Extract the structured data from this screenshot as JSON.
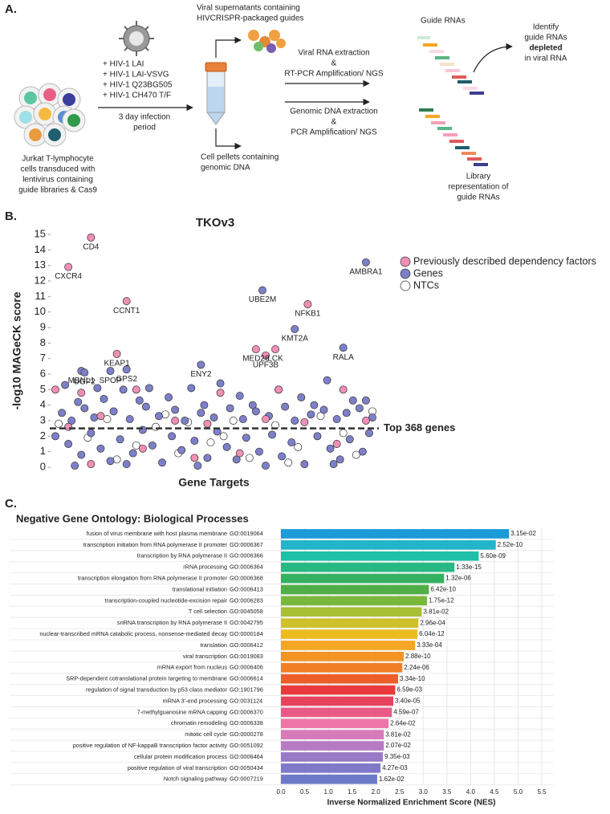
{
  "diagram": {
    "panel_label": "A.",
    "top_text": [
      "Viral supernatants containing",
      "HIVCRISPR-packaged  guides"
    ],
    "strains": [
      "+ HIV-1 LAI",
      "+ HIV-1 LAI-VSVG",
      "+ HIV-1 Q23BG505",
      "+ HIV-1 CH470 T/F"
    ],
    "infection": [
      "3 day infection",
      "period"
    ],
    "cells": [
      "Jurkat T-lymphocyte",
      "cells transduced with",
      "lentivirus containing",
      "guide libraries & Cas9"
    ],
    "pellets": [
      "Cell pellets containing",
      "genomic DNA"
    ],
    "viral_rna": [
      "Viral RNA extraction",
      "&",
      "RT-PCR Amplification/ NGS"
    ],
    "genomic_dna": [
      "Genomic DNA extraction",
      "&",
      "PCR Amplification/ NGS"
    ],
    "guide_rnas": "Guide RNAs",
    "identify": [
      "Identify",
      "guide RNAs",
      "depleted",
      "in viral RNA"
    ],
    "library": [
      "Library",
      "representation of",
      "guide RNAs"
    ]
  },
  "chart_data": [
    {
      "type": "scatter",
      "panel_label": "B.",
      "title": "TKOv3",
      "xlabel": "Gene Targets",
      "ylabel": "-log10 MAGeCK score",
      "xlim": [
        0,
        100
      ],
      "ylim": [
        0,
        15
      ],
      "yticks": [
        0,
        1,
        2,
        3,
        4,
        5,
        6,
        7,
        8,
        9,
        10,
        11,
        12,
        13,
        14,
        15
      ],
      "threshold": 2.5,
      "threshold_label": "Top 368 genes",
      "legend": "upper right",
      "series": [
        {
          "name": "Previously described dependency factors",
          "color": "#ef8fb6",
          "x": [
            12,
            5,
            23,
            79,
            20,
            63,
            69,
            66,
            1,
            9,
            26,
            52,
            70,
            90,
            5,
            15,
            28,
            38,
            48,
            58,
            66,
            78,
            88,
            97,
            44,
            12
          ],
          "values": [
            14.8,
            12.9,
            10.7,
            10.5,
            7.3,
            7.6,
            7.6,
            7.2,
            5.0,
            4.8,
            5.0,
            4.8,
            5.0,
            5.0,
            2.6,
            3.3,
            1.2,
            3.0,
            2.8,
            0.9,
            3.1,
            2.9,
            1.5,
            3.0,
            0.6,
            0.2
          ],
          "labels": [
            "CD4",
            "CXCR4",
            "CCNT1",
            "NFKB1",
            "KEAP1",
            "MED26",
            "LCK",
            "UPF3B",
            null,
            null,
            null,
            null,
            null,
            null,
            null,
            null,
            null,
            null,
            null,
            null,
            null,
            null,
            null,
            null,
            null,
            null
          ]
        },
        {
          "name": "Genes",
          "color": "#7d80c8",
          "x": [
            97,
            65,
            75,
            90,
            46,
            9,
            10,
            18,
            23,
            4,
            8,
            14,
            16,
            22,
            27,
            30,
            36,
            43,
            47,
            52,
            58,
            62,
            70,
            77,
            81,
            85,
            93,
            97,
            3,
            6,
            10,
            13,
            19,
            24,
            29,
            33,
            38,
            41,
            46,
            50,
            55,
            59,
            63,
            67,
            72,
            75,
            80,
            84,
            88,
            91,
            95,
            99,
            1,
            5,
            9,
            12,
            15,
            18,
            21,
            25,
            28,
            31,
            34,
            37,
            40,
            44,
            48,
            51,
            54,
            57,
            60,
            64,
            68,
            71,
            74,
            78,
            82,
            86,
            89,
            92,
            96,
            98,
            7,
            23,
            45,
            66,
            87
          ],
          "values": [
            13.2,
            11.4,
            8.9,
            7.7,
            6.6,
            6.2,
            6.1,
            6.2,
            6.3,
            5.3,
            4.2,
            5.1,
            4.4,
            5.0,
            4.3,
            5.1,
            4.5,
            5.1,
            4.0,
            5.4,
            4.6,
            4.0,
            5.0,
            4.5,
            4.0,
            5.6,
            4.3,
            4.3,
            3.5,
            3.0,
            3.8,
            3.2,
            3.6,
            3.1,
            3.9,
            3.3,
            3.7,
            3.0,
            3.5,
            3.2,
            3.8,
            3.1,
            3.6,
            3.3,
            3.9,
            3.0,
            3.4,
            3.7,
            3.1,
            3.5,
            3.8,
            3.2,
            2.0,
            1.5,
            0.8,
            2.2,
            1.2,
            0.4,
            1.8,
            0.9,
            2.4,
            1.4,
            0.3,
            2.0,
            1.1,
            1.7,
            0.6,
            2.3,
            1.3,
            0.5,
            1.9,
            1.0,
            2.1,
            0.7,
            1.6,
            0.2,
            2.0,
            1.2,
            0.5,
            1.8,
            1.0,
            2.2,
            0.1,
            0.2,
            0.1,
            0.1,
            0.2
          ],
          "labels": [
            "AMBRA1",
            "UBE2M",
            "KMT2A",
            "RALA",
            "ENY2",
            "MBNL1",
            "UGP2",
            "SPOP",
            "GPS2",
            null,
            null,
            null,
            null,
            null,
            null,
            null,
            null,
            null,
            null,
            null,
            null,
            null,
            null,
            null,
            null,
            null,
            null,
            null,
            null,
            null,
            null,
            null,
            null,
            null,
            null,
            null,
            null,
            null,
            null,
            null,
            null,
            null,
            null,
            null,
            null,
            null,
            null,
            null,
            null,
            null,
            null,
            null,
            null,
            null,
            null,
            null,
            null,
            null,
            null,
            null,
            null,
            null,
            null,
            null,
            null,
            null,
            null,
            null,
            null,
            null,
            null,
            null,
            null,
            null,
            null,
            null,
            null,
            null,
            null,
            null,
            null,
            null,
            null,
            null,
            null,
            null,
            null
          ]
        },
        {
          "name": "NTCs",
          "color": "#ffffff",
          "x": [
            2,
            11,
            17,
            26,
            32,
            39,
            42,
            49,
            56,
            61,
            69,
            76,
            83,
            90,
            94,
            99,
            20,
            53,
            73,
            35
          ],
          "values": [
            2.8,
            1.9,
            3.1,
            1.4,
            2.6,
            0.9,
            2.9,
            1.6,
            3.0,
            0.6,
            2.7,
            1.3,
            3.3,
            2.2,
            0.8,
            3.6,
            0.5,
            2.0,
            0.3,
            3.4
          ]
        }
      ]
    },
    {
      "type": "bar",
      "orientation": "horizontal",
      "panel_label": "C.",
      "title": "Negative Gene Ontology: Biological Processes",
      "xlabel": "Inverse Normalized Enrichment Score (NES)",
      "xlim": [
        0,
        5.5
      ],
      "xticks": [
        {
          "value": 0,
          "label": "0.0"
        },
        0.5,
        {
          "value": 1,
          "label": "1.0"
        },
        1.5,
        {
          "value": 2,
          "label": "2.0"
        },
        2.5,
        {
          "value": 3,
          "label": "3.0"
        },
        3.5,
        {
          "value": 4,
          "label": "4.0"
        },
        4.5,
        {
          "value": 5,
          "label": "5.0"
        },
        5.5
      ],
      "categories": [
        "fusion of virus membrane with host plasma membrane",
        "transcription initiation from RNA polymerase II promoter",
        "transcription by RNA polymerase II",
        "rRNA processing",
        "transcription elongation from RNA polymerase II promoter",
        "translational initiation",
        "transcription-coupled nucleotide-excision repair",
        "T cell selection",
        "snRNA transcription by RNA polymerase II",
        "nuclear-transcribed mRNA catabolic process, nonsense-mediated decay",
        "translation",
        "viral transcription",
        "mRNA export from nucleus",
        "SRP-dependent cotranslational protein targeting to membrane",
        "regulation of signal transduction by p53 class mediator",
        "mRNA 3'-end processing",
        "7-methylguanosine mRNA capping",
        "chromatin remodeling",
        "mitotic cell cycle",
        "positive regulation of NF-kappaB transcription factor activity",
        "cellular protein modification process",
        "positive regulation of viral transcription",
        "Notch signaling pathway"
      ],
      "go_ids": [
        "GO:0019064",
        "GO:0006367",
        "GO:0006366",
        "GO:0006364",
        "GO:0006368",
        "GO:0006413",
        "GO:0006283",
        "GO:0045058",
        "GO:0042795",
        "GO:0000184",
        "GO:0006412",
        "GO:0019083",
        "GO:0006406",
        "GO:0006614",
        "GO:1901796",
        "GO:0031124",
        "GO:0006370",
        "GO:0006338",
        "GO:0000278",
        "GO:0051092",
        "GO:0006464",
        "GO:0050434",
        "GO:0007219"
      ],
      "values": [
        4.81,
        4.53,
        4.17,
        3.66,
        3.44,
        3.12,
        3.08,
        2.97,
        2.9,
        2.88,
        2.83,
        2.59,
        2.56,
        2.47,
        2.41,
        2.37,
        2.34,
        2.27,
        2.17,
        2.17,
        2.15,
        2.1,
        2.03
      ],
      "p_values": [
        "3.15e-02",
        "2.52e-10",
        "5.60e-09",
        "1.33e-15",
        "1.32e-06",
        "6.42e-10",
        "1.75e-12",
        "3.81e-02",
        "2.96e-04",
        "6.04e-12",
        "3.33e-04",
        "2.88e-10",
        "2.24e-06",
        "3.34e-10",
        "6.59e-03",
        "3.40e-05",
        "4.59e-07",
        "2.64e-02",
        "3.81e-02",
        "2.07e-02",
        "9.35e-03",
        "4.27e-03",
        "1.62e-02"
      ],
      "colors": [
        "#1b9bd7",
        "#22b4c8",
        "#1fbfa8",
        "#27b883",
        "#33b060",
        "#4fae45",
        "#7ab83c",
        "#a6bf35",
        "#cfc12c",
        "#ebbb22",
        "#f5a623",
        "#f39323",
        "#f07f24",
        "#ec5e2a",
        "#e83a3c",
        "#e8435e",
        "#ea5a86",
        "#ec76a8",
        "#d67bba",
        "#b67bc2",
        "#987ac7",
        "#8079ca",
        "#6c7ac9"
      ]
    }
  ]
}
